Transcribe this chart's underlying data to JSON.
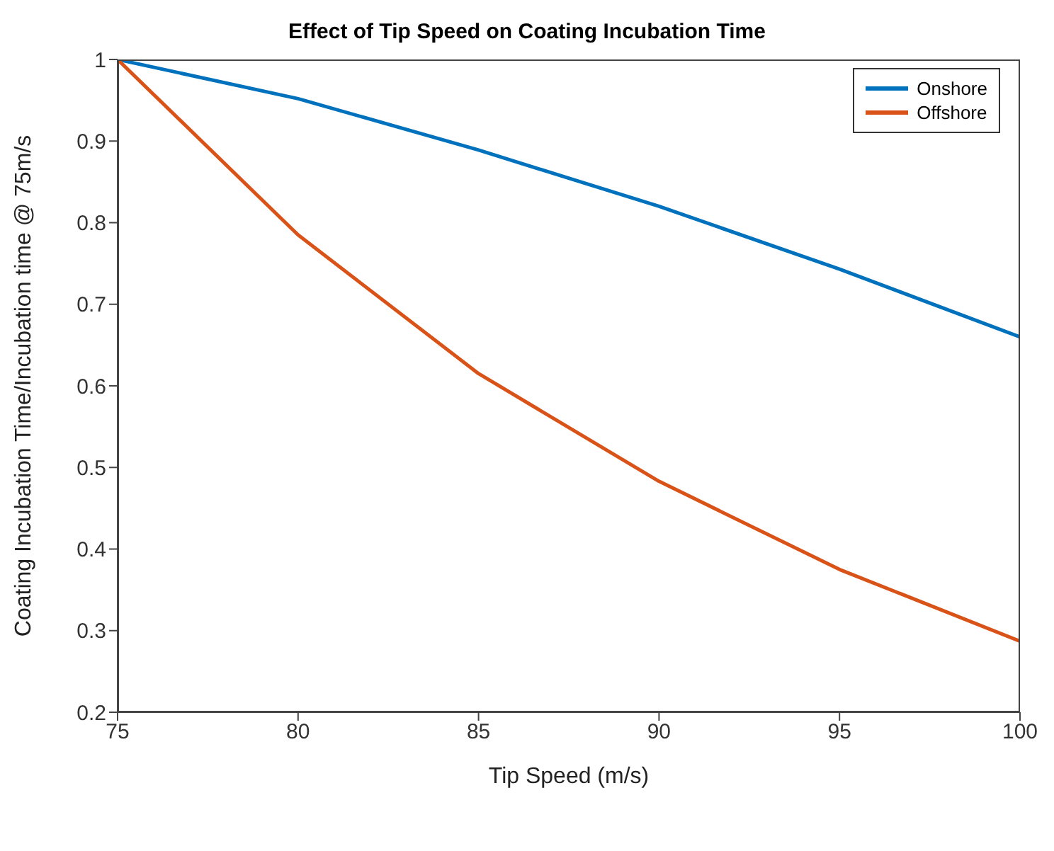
{
  "chart_data": {
    "type": "line",
    "title": "Effect of Tip Speed on Coating Incubation Time",
    "xlabel": "Tip Speed (m/s)",
    "ylabel": "Coating Incubation Time/Incubation time @ 75m/s",
    "x": [
      75,
      80,
      85,
      90,
      95,
      100
    ],
    "series": [
      {
        "name": "Onshore",
        "color": "#0072bd",
        "values": [
          1,
          0.952,
          0.889,
          0.82,
          0.743,
          0.66
        ]
      },
      {
        "name": "Offshore",
        "color": "#d95319",
        "values": [
          1,
          0.785,
          0.615,
          0.483,
          0.375,
          0.287
        ]
      }
    ],
    "xlim": [
      75,
      100
    ],
    "xticks": [
      75,
      80,
      85,
      90,
      95,
      100
    ],
    "ylim": [
      0.2,
      1
    ],
    "yticks": [
      0.2,
      0.3,
      0.4,
      0.5,
      0.6,
      0.7,
      0.8,
      0.9,
      1
    ],
    "legend": "top right",
    "marker": "none",
    "line_style": "solid"
  }
}
